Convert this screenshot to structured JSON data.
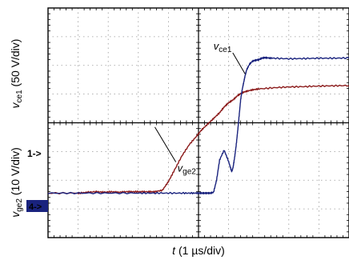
{
  "chart_data": {
    "type": "line",
    "grid": true,
    "grid_divisions": {
      "x": 10,
      "y": 8
    },
    "x_unit_per_div": "1 µs/div",
    "xlabel": {
      "var": "t",
      "unit": " (1 µs/div)"
    },
    "ylabel_top": {
      "var": "v",
      "sub": "ce1",
      "unit": " (50 V/div)"
    },
    "ylabel_bottom": {
      "var": "v",
      "sub": "ge2",
      "unit": " (10 V/div)"
    },
    "ground_markers": [
      {
        "label": "1->",
        "y_div": 5.1,
        "color": "#b01c1c",
        "style": "text"
      },
      {
        "label": "4->",
        "y_div": 6.45,
        "color": "#1a237e",
        "style": "box"
      }
    ],
    "annotations": [
      {
        "text_var": "v",
        "text_sub": "ce1",
        "at": [
          5.5,
          1.45
        ],
        "arrow_to": [
          6.55,
          2.3
        ]
      },
      {
        "text_var": "v",
        "text_sub": "ge2",
        "at": [
          4.3,
          5.7
        ],
        "arrow_to": [
          3.55,
          4.15
        ]
      }
    ],
    "series": [
      {
        "color": "#8b1a1a",
        "x": [
          0,
          1,
          1.05,
          1.3,
          1.6,
          1.85,
          2.1,
          2.35,
          2.6,
          2.85,
          3.1,
          3.35,
          3.55,
          3.8,
          4.0,
          4.2,
          4.45,
          4.7,
          4.95,
          5.1,
          5.3,
          5.5,
          5.7,
          5.85,
          6.0,
          6.15,
          6.3,
          6.45,
          6.6,
          6.8,
          7.0,
          7.5,
          8.0,
          8.5,
          9.0,
          9.5,
          10
        ],
        "y": [
          6.45,
          6.45,
          6.45,
          6.42,
          6.4,
          6.42,
          6.4,
          6.42,
          6.4,
          6.4,
          6.4,
          6.4,
          6.4,
          6.35,
          6.05,
          5.65,
          5.15,
          4.75,
          4.45,
          4.25,
          4.05,
          3.85,
          3.65,
          3.45,
          3.3,
          3.2,
          3.05,
          2.95,
          2.9,
          2.85,
          2.82,
          2.78,
          2.75,
          2.74,
          2.72,
          2.71,
          2.7
        ]
      },
      {
        "color": "#1a237e",
        "x": [
          0,
          1,
          2,
          3,
          3.5,
          4.0,
          4.5,
          4.8,
          5.0,
          5.1,
          5.2,
          5.3,
          5.4,
          5.5,
          5.6,
          5.7,
          5.85,
          6.0,
          6.1,
          6.15,
          6.2,
          6.25,
          6.3,
          6.35,
          6.4,
          6.45,
          6.5,
          6.55,
          6.6,
          6.7,
          6.8,
          6.9,
          7.0,
          7.1,
          7.2,
          7.3,
          7.5,
          8.0,
          8.5,
          9.0,
          9.5,
          10
        ],
        "y": [
          6.45,
          6.45,
          6.45,
          6.45,
          6.45,
          6.45,
          6.45,
          6.45,
          6.45,
          6.45,
          6.45,
          6.45,
          6.45,
          6.42,
          6.0,
          5.3,
          4.95,
          5.35,
          5.7,
          5.55,
          5.2,
          4.8,
          4.3,
          3.75,
          3.2,
          2.85,
          2.6,
          2.35,
          2.15,
          1.95,
          1.85,
          1.82,
          1.8,
          1.75,
          1.73,
          1.74,
          1.75,
          1.77,
          1.76,
          1.75,
          1.75,
          1.74
        ]
      }
    ]
  }
}
